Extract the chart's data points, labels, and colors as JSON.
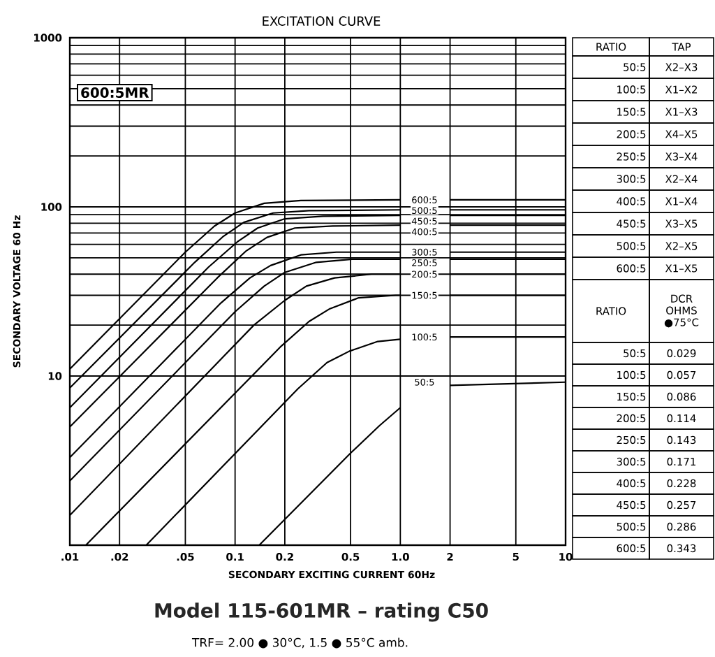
{
  "chart_data": {
    "type": "line",
    "title": "EXCITATION CURVE",
    "xlabel": "SECONDARY EXCITING CURRENT 60Hz",
    "ylabel": "SECONDARY VOLTAGE 60 Hz",
    "log": "xy",
    "xlim": [
      0.01,
      10
    ],
    "ylim": [
      1,
      1000
    ],
    "xticks": [
      {
        "value": 0.01,
        "label": ".01"
      },
      {
        "value": 0.02,
        "label": ".02"
      },
      {
        "value": 0.05,
        "label": ".05"
      },
      0.1,
      0.2,
      0.5,
      {
        "value": 1,
        "label": "1.0"
      },
      2,
      5,
      10
    ],
    "yticks": [
      10,
      100,
      1000
    ],
    "grid": true,
    "annotations": [
      "600:5MR",
      "Model 115-601MR – rating C50",
      "TRF= 2.00 ● 30°C, 1.5 ● 55°C amb.",
      "RATIO",
      "TAP",
      "50:5",
      "X2–X3",
      "100:5",
      "X1–X2",
      "150:5",
      "X1–X3",
      "200:5",
      "X4–X5",
      "250:5",
      "X3–X4",
      "300:5",
      "X2–X4",
      "400:5",
      "X1–X4",
      "450:5",
      "X3–X5",
      "500:5",
      "X2–X5",
      "600:5",
      "X1–X5",
      "RATIO",
      "DCR OHMS ●75°C",
      "50:5",
      "0.029",
      "100:5",
      "0.057",
      "150:5",
      "0.086",
      "200:5",
      "0.114",
      "250:5",
      "0.143",
      "300:5",
      "0.171",
      "400:5",
      "0.228",
      "450:5",
      "0.257",
      "500:5",
      "0.286",
      "600:5",
      "0.343"
    ],
    "series": [
      {
        "name": "600:5",
        "color": "#000000",
        "x": [
          0.01,
          0.05,
          0.075,
          0.1,
          0.15,
          0.25,
          1,
          1.4,
          2,
          10
        ],
        "values": [
          11,
          54,
          77,
          92,
          105,
          109,
          110,
          null,
          110,
          110
        ]
      },
      {
        "name": "500:5",
        "color": "#000000",
        "x": [
          0.01,
          0.057,
          0.085,
          0.113,
          0.17,
          0.28,
          1,
          1.4,
          2,
          10
        ],
        "values": [
          8.5,
          47,
          67,
          81,
          92,
          95,
          96,
          null,
          96,
          96
        ]
      },
      {
        "name": "450:5",
        "color": "#000000",
        "x": [
          0.01,
          0.069,
          0.103,
          0.137,
          0.2,
          0.34,
          1,
          1.4,
          2,
          10
        ],
        "values": [
          6.5,
          44,
          62,
          75,
          85,
          88,
          89,
          null,
          89,
          89
        ]
      },
      {
        "name": "400:5",
        "color": "#000000",
        "x": [
          0.01,
          0.078,
          0.117,
          0.156,
          0.23,
          0.39,
          1,
          1.4,
          2,
          10
        ],
        "values": [
          5,
          38,
          55,
          66,
          75,
          77,
          78,
          null,
          78,
          78
        ]
      },
      {
        "name": "300:5",
        "color": "#000000",
        "x": [
          0.01,
          0.082,
          0.123,
          0.164,
          0.25,
          0.41,
          1,
          1.4,
          2,
          10
        ],
        "values": [
          3.3,
          27,
          38,
          45,
          52,
          54,
          54,
          null,
          54,
          54
        ]
      },
      {
        "name": "250:5",
        "color": "#000000",
        "x": [
          0.01,
          0.1,
          0.15,
          0.2,
          0.31,
          0.51,
          1,
          1.4,
          2,
          10
        ],
        "values": [
          2.4,
          24,
          34,
          41,
          47,
          49,
          49,
          null,
          49,
          49
        ]
      },
      {
        "name": "200:5",
        "color": "#000000",
        "x": [
          0.01,
          0.13,
          0.2,
          0.27,
          0.4,
          0.67,
          1,
          1.4,
          2,
          10
        ],
        "values": [
          1.5,
          20,
          28,
          34,
          38,
          40,
          40,
          null,
          40,
          40
        ]
      },
      {
        "name": "150:5",
        "color": "#000000",
        "x": [
          0.0125,
          0.19,
          0.28,
          0.375,
          0.56,
          0.94,
          1,
          1.4,
          2,
          10
        ],
        "values": [
          1,
          15,
          21,
          25,
          29,
          30,
          30,
          null,
          30,
          30
        ]
      },
      {
        "name": "100:5",
        "color": "#000000",
        "x": [
          0.029,
          0.24,
          0.36,
          0.49,
          0.73,
          1,
          1.4,
          2,
          10
        ],
        "values": [
          1,
          8.4,
          12,
          14,
          16,
          16.5,
          null,
          17,
          17
        ]
      },
      {
        "name": "50:5",
        "color": "#000000",
        "x": [
          0.14,
          0.5,
          0.75,
          1,
          1.4,
          2,
          10
        ],
        "values": [
          1,
          3.5,
          5.1,
          6.5,
          null,
          8.8,
          9.2
        ]
      }
    ]
  }
}
